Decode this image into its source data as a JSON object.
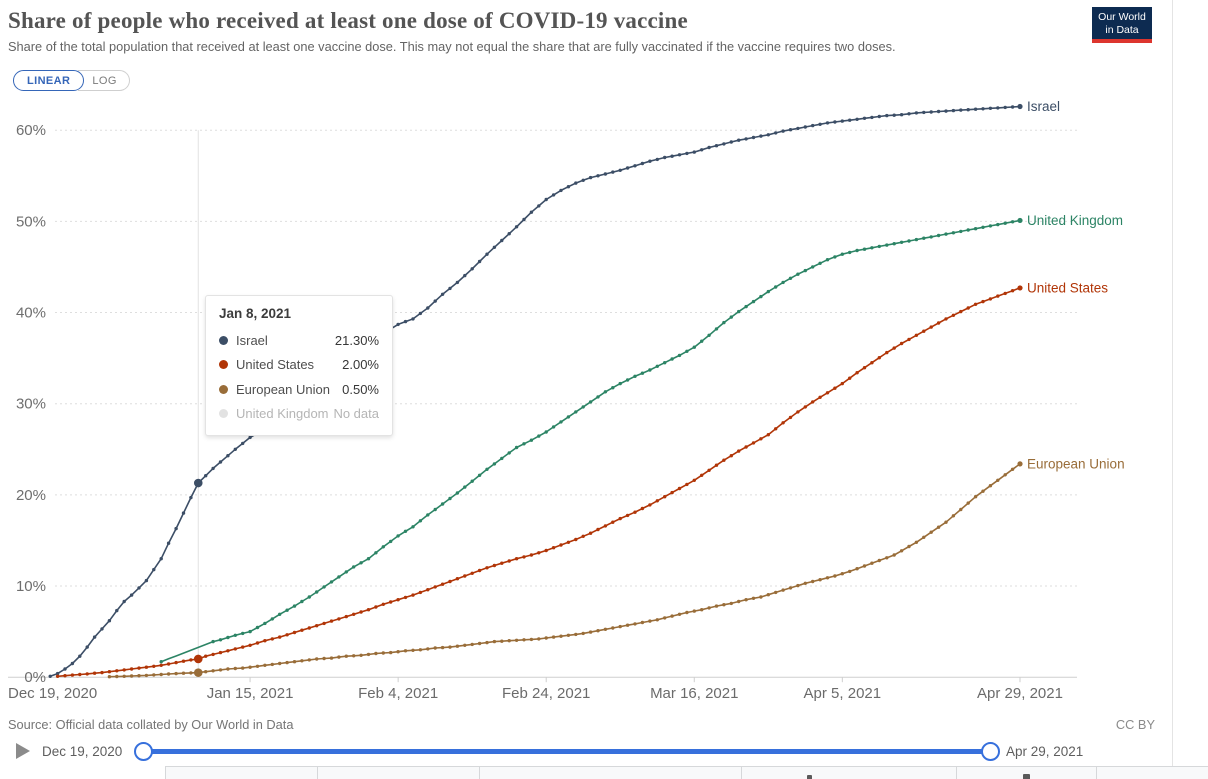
{
  "header": {
    "title": "Share of people who received at least one dose of COVID-19 vaccine",
    "subtitle": "Share of the total population that received at least one vaccine dose. This may not equal the share that are fully vaccinated if the vaccine requires two doses.",
    "logo_line1": "Our World",
    "logo_line2": "in Data"
  },
  "toggle": {
    "linear_label": "LINEAR",
    "log_label": "LOG"
  },
  "chart_data": {
    "type": "line",
    "title": "Share of people who received at least one dose of COVID-19 vaccine",
    "x_axis": {
      "unit": "date",
      "range": [
        "Dec 19, 2020",
        "Apr 29, 2021"
      ],
      "ticks": [
        {
          "label": "Dec 19, 2020",
          "day": 0
        },
        {
          "label": "Jan 15, 2021",
          "day": 27
        },
        {
          "label": "Feb 4, 2021",
          "day": 47
        },
        {
          "label": "Feb 24, 2021",
          "day": 67
        },
        {
          "label": "Mar 16, 2021",
          "day": 87
        },
        {
          "label": "Apr 5, 2021",
          "day": 107
        },
        {
          "label": "Apr 29, 2021",
          "day": 131
        }
      ]
    },
    "y_axis": {
      "tick_labels": [
        "0%",
        "10%",
        "20%",
        "30%",
        "40%",
        "50%",
        "60%"
      ],
      "tick_values": [
        0,
        10,
        20,
        30,
        40,
        50,
        60
      ],
      "ylim": [
        0,
        63
      ],
      "grid": "dashed-horizontal"
    },
    "legend_position": "line-end-labels",
    "series": [
      {
        "name": "Israel",
        "color": "#3C4E66",
        "end_label": "Israel",
        "points": [
          [
            0,
            0.1
          ],
          [
            1,
            0.4
          ],
          [
            2,
            0.9
          ],
          [
            3,
            1.5
          ],
          [
            4,
            2.3
          ],
          [
            5,
            3.3
          ],
          [
            6,
            4.4
          ],
          [
            7,
            5.3
          ],
          [
            8,
            6.2
          ],
          [
            9,
            7.3
          ],
          [
            10,
            8.3
          ],
          [
            11,
            9.0
          ],
          [
            12,
            9.8
          ],
          [
            13,
            10.6
          ],
          [
            14,
            11.8
          ],
          [
            15,
            13.0
          ],
          [
            16,
            14.7
          ],
          [
            17,
            16.3
          ],
          [
            18,
            18.0
          ],
          [
            19,
            19.7
          ],
          [
            20,
            21.3
          ],
          [
            21,
            22.1
          ],
          [
            22,
            22.9
          ],
          [
            23,
            23.6
          ],
          [
            25,
            25.0
          ],
          [
            27,
            26.3
          ],
          [
            29,
            27.2
          ],
          [
            31,
            28.3
          ],
          [
            33,
            29.6
          ],
          [
            35,
            30.9
          ],
          [
            37,
            32.3
          ],
          [
            39,
            33.7
          ],
          [
            41,
            35.2
          ],
          [
            43,
            36.5
          ],
          [
            45,
            37.7
          ],
          [
            47,
            38.7
          ],
          [
            49,
            39.3
          ],
          [
            51,
            40.5
          ],
          [
            53,
            42.0
          ],
          [
            55,
            43.3
          ],
          [
            57,
            44.8
          ],
          [
            59,
            46.4
          ],
          [
            61,
            47.9
          ],
          [
            63,
            49.4
          ],
          [
            65,
            51.0
          ],
          [
            67,
            52.4
          ],
          [
            69,
            53.4
          ],
          [
            71,
            54.2
          ],
          [
            73,
            54.8
          ],
          [
            75,
            55.2
          ],
          [
            77,
            55.6
          ],
          [
            79,
            56.1
          ],
          [
            81,
            56.6
          ],
          [
            83,
            57.0
          ],
          [
            85,
            57.3
          ],
          [
            87,
            57.6
          ],
          [
            89,
            58.1
          ],
          [
            91,
            58.5
          ],
          [
            93,
            58.9
          ],
          [
            95,
            59.2
          ],
          [
            97,
            59.5
          ],
          [
            99,
            59.9
          ],
          [
            101,
            60.2
          ],
          [
            103,
            60.5
          ],
          [
            105,
            60.8
          ],
          [
            107,
            61.0
          ],
          [
            109,
            61.2
          ],
          [
            111,
            61.4
          ],
          [
            113,
            61.6
          ],
          [
            115,
            61.7
          ],
          [
            117,
            61.9
          ],
          [
            119,
            62.0
          ],
          [
            121,
            62.1
          ],
          [
            123,
            62.2
          ],
          [
            125,
            62.3
          ],
          [
            127,
            62.4
          ],
          [
            129,
            62.5
          ],
          [
            131,
            62.6
          ]
        ]
      },
      {
        "name": "United Kingdom",
        "color": "#2C8465",
        "end_label": "United Kingdom",
        "points": [
          [
            15,
            1.7
          ],
          [
            22,
            3.9
          ],
          [
            23,
            4.1
          ],
          [
            25,
            4.6
          ],
          [
            27,
            5.0
          ],
          [
            29,
            5.9
          ],
          [
            31,
            6.9
          ],
          [
            33,
            7.8
          ],
          [
            35,
            8.8
          ],
          [
            37,
            9.9
          ],
          [
            39,
            11.0
          ],
          [
            41,
            12.1
          ],
          [
            43,
            13.0
          ],
          [
            45,
            14.3
          ],
          [
            47,
            15.5
          ],
          [
            49,
            16.5
          ],
          [
            51,
            17.8
          ],
          [
            53,
            19.0
          ],
          [
            55,
            20.2
          ],
          [
            57,
            21.5
          ],
          [
            59,
            22.8
          ],
          [
            61,
            24.0
          ],
          [
            63,
            25.2
          ],
          [
            65,
            26.0
          ],
          [
            67,
            26.9
          ],
          [
            69,
            28.0
          ],
          [
            71,
            29.1
          ],
          [
            73,
            30.2
          ],
          [
            75,
            31.3
          ],
          [
            77,
            32.2
          ],
          [
            79,
            33.0
          ],
          [
            81,
            33.7
          ],
          [
            83,
            34.5
          ],
          [
            85,
            35.3
          ],
          [
            87,
            36.2
          ],
          [
            89,
            37.5
          ],
          [
            91,
            38.9
          ],
          [
            93,
            40.1
          ],
          [
            95,
            41.2
          ],
          [
            97,
            42.3
          ],
          [
            99,
            43.3
          ],
          [
            101,
            44.2
          ],
          [
            103,
            45.0
          ],
          [
            105,
            45.8
          ],
          [
            107,
            46.4
          ],
          [
            109,
            46.8
          ],
          [
            111,
            47.1
          ],
          [
            113,
            47.4
          ],
          [
            115,
            47.7
          ],
          [
            117,
            48.0
          ],
          [
            119,
            48.3
          ],
          [
            121,
            48.6
          ],
          [
            123,
            48.9
          ],
          [
            125,
            49.2
          ],
          [
            127,
            49.5
          ],
          [
            129,
            49.8
          ],
          [
            131,
            50.1
          ]
        ],
        "dots_from_day": 22
      },
      {
        "name": "United States",
        "color": "#B13507",
        "end_label": "United States",
        "points": [
          [
            1,
            0.1
          ],
          [
            4,
            0.3
          ],
          [
            7,
            0.5
          ],
          [
            9,
            0.7
          ],
          [
            11,
            0.9
          ],
          [
            13,
            1.1
          ],
          [
            15,
            1.3
          ],
          [
            17,
            1.6
          ],
          [
            19,
            1.9
          ],
          [
            20,
            2.0
          ],
          [
            21,
            2.3
          ],
          [
            23,
            2.7
          ],
          [
            25,
            3.1
          ],
          [
            27,
            3.5
          ],
          [
            29,
            4.0
          ],
          [
            31,
            4.4
          ],
          [
            33,
            4.9
          ],
          [
            35,
            5.4
          ],
          [
            37,
            5.9
          ],
          [
            39,
            6.4
          ],
          [
            41,
            6.9
          ],
          [
            43,
            7.4
          ],
          [
            45,
            8.0
          ],
          [
            47,
            8.5
          ],
          [
            49,
            9.0
          ],
          [
            51,
            9.6
          ],
          [
            53,
            10.2
          ],
          [
            55,
            10.8
          ],
          [
            57,
            11.4
          ],
          [
            59,
            12.0
          ],
          [
            61,
            12.5
          ],
          [
            63,
            13.0
          ],
          [
            65,
            13.4
          ],
          [
            67,
            13.9
          ],
          [
            69,
            14.5
          ],
          [
            71,
            15.1
          ],
          [
            73,
            15.8
          ],
          [
            75,
            16.6
          ],
          [
            77,
            17.4
          ],
          [
            79,
            18.1
          ],
          [
            81,
            18.9
          ],
          [
            83,
            19.8
          ],
          [
            85,
            20.7
          ],
          [
            87,
            21.6
          ],
          [
            89,
            22.7
          ],
          [
            91,
            23.8
          ],
          [
            93,
            24.8
          ],
          [
            95,
            25.7
          ],
          [
            97,
            26.6
          ],
          [
            99,
            27.9
          ],
          [
            101,
            29.1
          ],
          [
            103,
            30.2
          ],
          [
            105,
            31.2
          ],
          [
            107,
            32.2
          ],
          [
            109,
            33.4
          ],
          [
            111,
            34.5
          ],
          [
            113,
            35.6
          ],
          [
            115,
            36.6
          ],
          [
            117,
            37.5
          ],
          [
            119,
            38.4
          ],
          [
            121,
            39.3
          ],
          [
            123,
            40.1
          ],
          [
            125,
            40.9
          ],
          [
            127,
            41.5
          ],
          [
            129,
            42.1
          ],
          [
            131,
            42.7
          ]
        ]
      },
      {
        "name": "European Union",
        "color": "#996D39",
        "end_label": "European Union",
        "points": [
          [
            8,
            0.05
          ],
          [
            10,
            0.1
          ],
          [
            13,
            0.2
          ],
          [
            15,
            0.3
          ],
          [
            17,
            0.4
          ],
          [
            20,
            0.5
          ],
          [
            22,
            0.7
          ],
          [
            24,
            0.9
          ],
          [
            26,
            1.0
          ],
          [
            28,
            1.2
          ],
          [
            30,
            1.4
          ],
          [
            32,
            1.6
          ],
          [
            34,
            1.8
          ],
          [
            36,
            2.0
          ],
          [
            38,
            2.1
          ],
          [
            40,
            2.3
          ],
          [
            42,
            2.4
          ],
          [
            44,
            2.6
          ],
          [
            46,
            2.7
          ],
          [
            48,
            2.9
          ],
          [
            50,
            3.0
          ],
          [
            52,
            3.2
          ],
          [
            54,
            3.3
          ],
          [
            56,
            3.5
          ],
          [
            58,
            3.7
          ],
          [
            60,
            3.9
          ],
          [
            62,
            4.0
          ],
          [
            64,
            4.1
          ],
          [
            66,
            4.2
          ],
          [
            68,
            4.4
          ],
          [
            70,
            4.6
          ],
          [
            72,
            4.8
          ],
          [
            74,
            5.1
          ],
          [
            76,
            5.4
          ],
          [
            78,
            5.7
          ],
          [
            80,
            6.0
          ],
          [
            82,
            6.3
          ],
          [
            84,
            6.7
          ],
          [
            86,
            7.1
          ],
          [
            88,
            7.4
          ],
          [
            90,
            7.8
          ],
          [
            92,
            8.1
          ],
          [
            94,
            8.5
          ],
          [
            96,
            8.8
          ],
          [
            98,
            9.3
          ],
          [
            100,
            9.8
          ],
          [
            102,
            10.3
          ],
          [
            104,
            10.7
          ],
          [
            106,
            11.1
          ],
          [
            108,
            11.6
          ],
          [
            110,
            12.2
          ],
          [
            112,
            12.8
          ],
          [
            114,
            13.4
          ],
          [
            117,
            14.8
          ],
          [
            121,
            17.0
          ],
          [
            125,
            19.8
          ],
          [
            128,
            21.6
          ],
          [
            131,
            23.4
          ]
        ]
      }
    ],
    "hover": {
      "date": "Jan 8, 2021",
      "day": 20,
      "rows": [
        {
          "name": "Israel",
          "value": 21.3,
          "display": "21.30%",
          "color": "#3C4E66",
          "disabled": false
        },
        {
          "name": "United States",
          "value": 2.0,
          "display": "2.00%",
          "color": "#B13507",
          "disabled": false
        },
        {
          "name": "European Union",
          "value": 0.5,
          "display": "0.50%",
          "color": "#996D39",
          "disabled": false
        },
        {
          "name": "United Kingdom",
          "value": null,
          "display": "No data",
          "color": "#e2e2e2",
          "disabled": true
        }
      ]
    }
  },
  "footer": {
    "source": "Source: Official data collated by Our World in Data",
    "license": "CC BY"
  },
  "timeline": {
    "start_label": "Dec 19, 2020",
    "end_label": "Apr 29, 2021"
  }
}
